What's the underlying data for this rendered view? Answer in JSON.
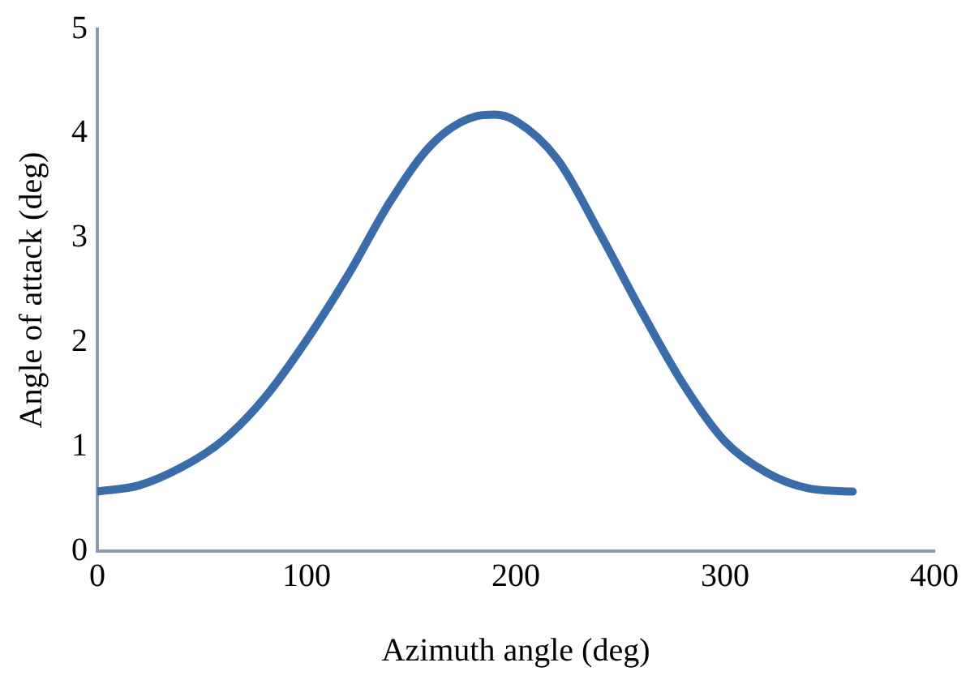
{
  "chart_data": {
    "type": "line",
    "xlabel": "Azimuth angle (deg)",
    "ylabel": "Angle of attack (deg)",
    "x": [
      0,
      20,
      40,
      60,
      80,
      100,
      120,
      140,
      160,
      180,
      190,
      200,
      220,
      240,
      260,
      280,
      300,
      320,
      340,
      361
    ],
    "series": [
      {
        "color": "#3b6caa",
        "values": [
          0.57,
          0.63,
          0.8,
          1.06,
          1.47,
          2.02,
          2.65,
          3.35,
          3.9,
          4.16,
          4.18,
          4.12,
          3.75,
          3.05,
          2.3,
          1.6,
          1.05,
          0.75,
          0.6,
          0.57
        ]
      }
    ],
    "xlim": [
      0,
      400
    ],
    "xticks": [
      0,
      100,
      200,
      300,
      400
    ],
    "ylim": [
      0,
      5
    ],
    "yticks": [
      0,
      1,
      2,
      3,
      4,
      5
    ],
    "grid": false,
    "legend": false,
    "marker": "none",
    "line_style": "solid"
  }
}
